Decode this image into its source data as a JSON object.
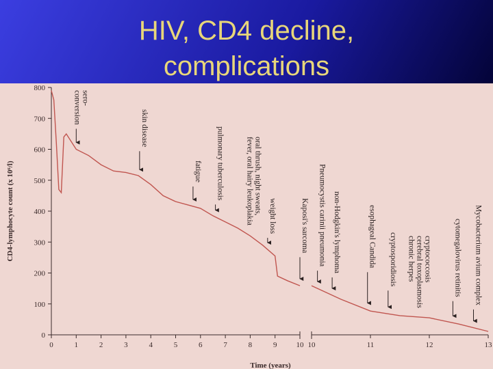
{
  "chart_data": {
    "type": "line",
    "title": [
      "HIV, CD4 decline,",
      "complications"
    ],
    "ylabel": "CD4-lymphocyte count (x 10⁶/l)",
    "xlabel": "Time (years)",
    "ylim": [
      0,
      800
    ],
    "yticks": [
      0,
      100,
      200,
      300,
      400,
      500,
      600,
      700,
      800
    ],
    "color": "#c0554f",
    "segments": [
      {
        "xlim": [
          0,
          10
        ],
        "xticks": [
          0,
          1,
          2,
          3,
          4,
          5,
          6,
          7,
          8,
          9,
          10
        ],
        "x": [
          0,
          0.1,
          0.2,
          0.3,
          0.4,
          0.5,
          0.6,
          1,
          1.5,
          2,
          2.5,
          3,
          3.5,
          4,
          4.5,
          5,
          5.5,
          6,
          6.5,
          7,
          7.5,
          8,
          8.5,
          9,
          9.1,
          9.5,
          10
        ],
        "values": [
          790,
          760,
          620,
          470,
          460,
          640,
          650,
          600,
          580,
          550,
          530,
          525,
          515,
          486,
          450,
          431,
          420,
          409,
          385,
          365,
          345,
          320,
          290,
          255,
          190,
          175,
          159
        ]
      },
      {
        "xlim": [
          10,
          13
        ],
        "xticks": [
          10,
          11,
          12,
          13
        ],
        "x": [
          10,
          10.5,
          11,
          11.5,
          12,
          12.5,
          13
        ],
        "values": [
          159,
          115,
          77,
          62,
          55,
          35,
          11
        ]
      }
    ],
    "annotations": [
      {
        "segment": 0,
        "x": 1.0,
        "lines": [
          "sero-",
          "conversion"
        ]
      },
      {
        "segment": 0,
        "x": 3.55,
        "lines": [
          "skin disease"
        ]
      },
      {
        "segment": 0,
        "x": 5.7,
        "lines": [
          "fatigue"
        ]
      },
      {
        "segment": 0,
        "x": 6.6,
        "lines": [
          "pulmonary tuberculosis"
        ]
      },
      {
        "segment": 0,
        "x": 7.95,
        "lines": [
          "oral thrush, night sweats,",
          "fever, oral hairy leukoplakia"
        ]
      },
      {
        "segment": 0,
        "x": 8.7,
        "lines": [
          "weight loss"
        ]
      },
      {
        "segment": 0,
        "x": 10,
        "lines": [
          "Kaposi's sarcoma"
        ]
      },
      {
        "segment": 1,
        "x": 10.1,
        "lines": [
          "Pneumocystis carinii pneumonia"
        ]
      },
      {
        "segment": 1,
        "x": 10.35,
        "lines": [
          "non-Hodgkin's lymphoma"
        ]
      },
      {
        "segment": 1,
        "x": 10.95,
        "lines": [
          "esophageal Candida"
        ]
      },
      {
        "segment": 1,
        "x": 11.3,
        "lines": [
          "cryptosporidiosis"
        ]
      },
      {
        "segment": 1,
        "x": 11.75,
        "lines": [
          "cryptococcosis",
          "cerebral toxoplasmosis",
          "chronic herpes"
        ]
      },
      {
        "segment": 1,
        "x": 12.4,
        "lines": [
          "cytomegalovirus retinitis"
        ]
      },
      {
        "segment": 1,
        "x": 12.75,
        "lines": [
          "Mycobacterium avium complex"
        ]
      }
    ]
  }
}
